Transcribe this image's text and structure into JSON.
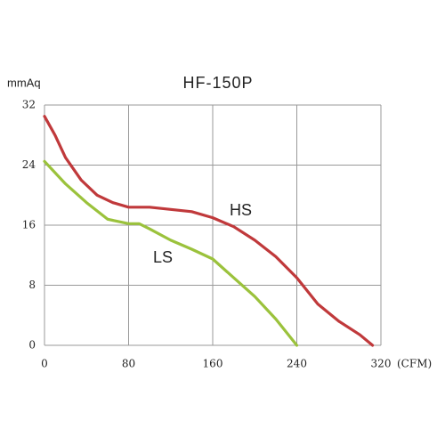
{
  "chart_data": {
    "type": "line",
    "title": "HF-150P",
    "x_label": "(CFM)",
    "y_label": "mmAq",
    "xlim": [
      0,
      320
    ],
    "ylim": [
      0,
      32
    ],
    "xticks": [
      0,
      80,
      160,
      240,
      320
    ],
    "yticks": [
      0,
      8,
      16,
      24,
      32
    ],
    "grid": true,
    "series": [
      {
        "name": "HS",
        "color": "#c0393b",
        "x": [
          0,
          10,
          20,
          35,
          50,
          65,
          80,
          100,
          120,
          140,
          160,
          180,
          200,
          220,
          240,
          260,
          280,
          300,
          312
        ],
        "values": [
          30.5,
          28,
          25,
          22,
          20,
          19,
          18.4,
          18.4,
          18.1,
          17.8,
          17,
          15.8,
          14,
          11.8,
          9,
          5.5,
          3.2,
          1.4,
          0
        ]
      },
      {
        "name": "LS",
        "color": "#9bc23c",
        "x": [
          0,
          20,
          40,
          60,
          80,
          90,
          100,
          120,
          140,
          160,
          180,
          200,
          220,
          240
        ],
        "values": [
          24.5,
          21.5,
          19,
          16.8,
          16.2,
          16.2,
          15.5,
          14,
          12.8,
          11.5,
          9,
          6.5,
          3.5,
          0
        ]
      }
    ]
  }
}
